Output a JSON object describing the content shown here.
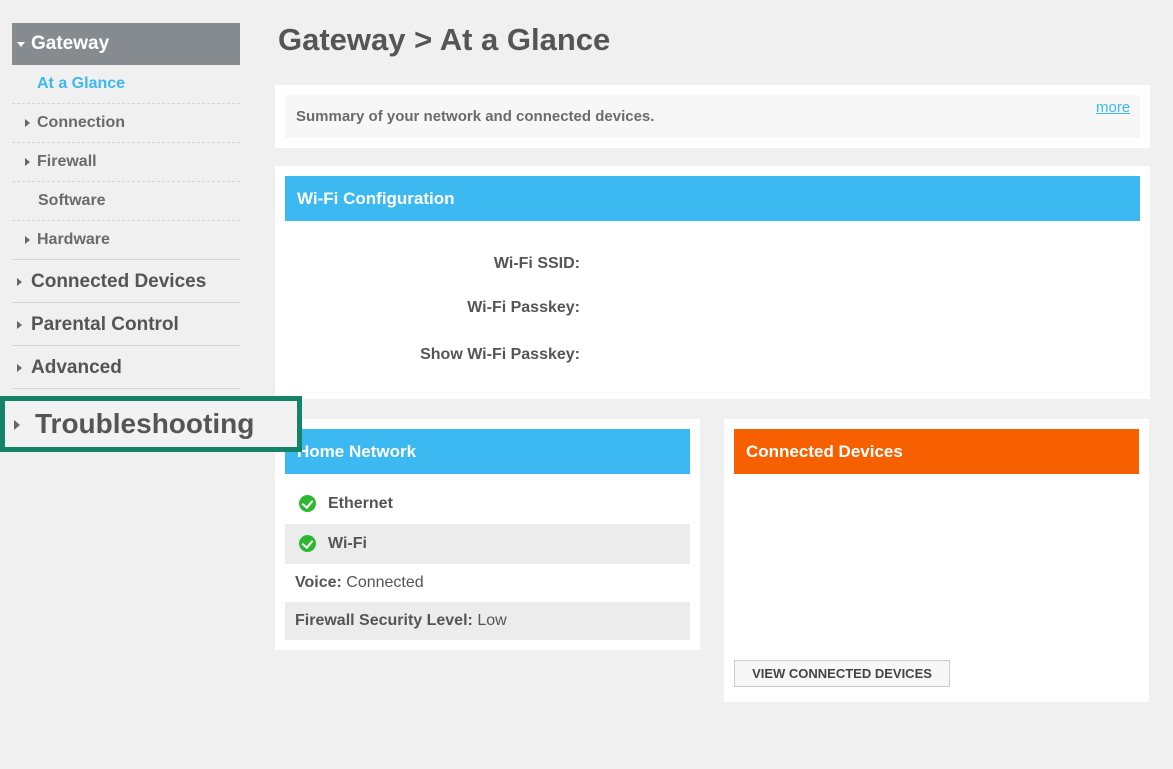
{
  "sidebar": {
    "section": "Gateway",
    "sub_items": [
      {
        "label": "At a Glance"
      },
      {
        "label": "Connection"
      },
      {
        "label": "Firewall"
      },
      {
        "label": "Software"
      },
      {
        "label": "Hardware"
      }
    ],
    "items": [
      {
        "label": "Connected Devices"
      },
      {
        "label": "Parental Control"
      },
      {
        "label": "Advanced"
      },
      {
        "label": "Troubleshooting"
      }
    ]
  },
  "page": {
    "title": "Gateway > At a Glance"
  },
  "summary": {
    "text": "Summary of your network and connected devices.",
    "more": "more"
  },
  "wifi": {
    "header": "Wi-Fi Configuration",
    "ssid_label": "Wi-Fi SSID:",
    "passkey_label": "Wi-Fi Passkey:",
    "show_label": "Show Wi-Fi Passkey:"
  },
  "home": {
    "header": "Home Network",
    "ethernet": "Ethernet",
    "wifi": "Wi-Fi",
    "voice_label": "Voice:",
    "voice_value": "Connected",
    "fw_label": "Firewall Security Level:",
    "fw_value": "Low"
  },
  "devices": {
    "header": "Connected Devices",
    "button": "VIEW CONNECTED DEVICES"
  },
  "colors": {
    "accent": "#3bb9f0",
    "orange": "#f76000",
    "highlight": "#138467"
  }
}
